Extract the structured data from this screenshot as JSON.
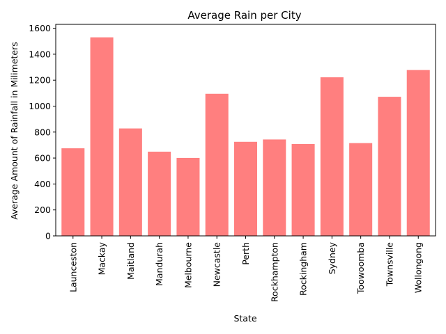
{
  "chart_data": {
    "type": "bar",
    "title": "Average Rain per City",
    "xlabel": "State",
    "ylabel": "Average Amount of Rainfall in Milimeters",
    "categories": [
      "Launceston",
      "Mackay",
      "Maitland",
      "Mandurah",
      "Melbourne",
      "Newcastle",
      "Perth",
      "Rockhampton",
      "Rockingham",
      "Sydney",
      "Toowoomba",
      "Townsville",
      "Wollongong"
    ],
    "values": [
      675,
      1530,
      828,
      649,
      601,
      1095,
      725,
      743,
      708,
      1222,
      715,
      1072,
      1278
    ],
    "ylim": [
      0,
      1630
    ],
    "yticks": [
      0,
      200,
      400,
      600,
      800,
      1000,
      1200,
      1400,
      1600
    ],
    "bar_color": "#ff7f7f",
    "grid": false,
    "legend": "none"
  }
}
